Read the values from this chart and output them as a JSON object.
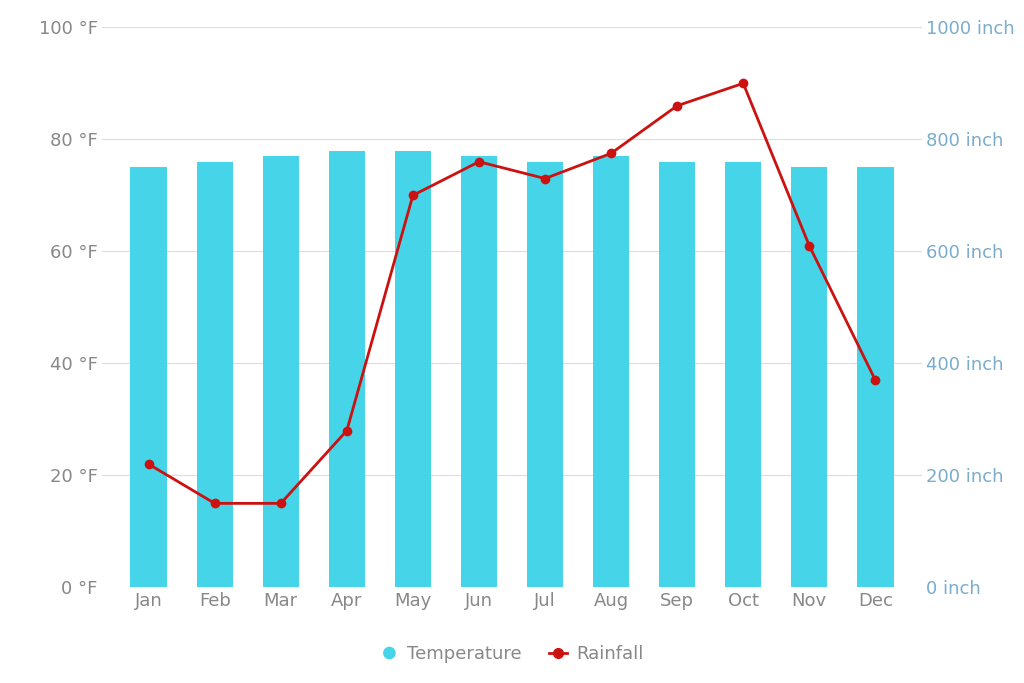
{
  "months": [
    "Jan",
    "Feb",
    "Mar",
    "Apr",
    "May",
    "Jun",
    "Jul",
    "Aug",
    "Sep",
    "Oct",
    "Nov",
    "Dec"
  ],
  "temperature": [
    75,
    76,
    77,
    78,
    78,
    77,
    76,
    77,
    76,
    76,
    75,
    75
  ],
  "rainfall": [
    220,
    150,
    150,
    280,
    700,
    760,
    730,
    775,
    860,
    900,
    610,
    370
  ],
  "bar_color": "#45d4e8",
  "line_color": "#cc1111",
  "marker_color": "#cc1111",
  "bg_color": "#ffffff",
  "left_axis_color": "#888888",
  "right_axis_color": "#7aadcc",
  "grid_color": "#dddddd",
  "left_yticks": [
    0,
    20,
    40,
    60,
    80,
    100
  ],
  "left_ylabels": [
    "0 °F",
    "20 °F",
    "40 °F",
    "60 °F",
    "80 °F",
    "100 °F"
  ],
  "right_yticks": [
    0,
    200,
    400,
    600,
    800,
    1000
  ],
  "right_ylabels": [
    "0 inch",
    "200 inch",
    "400 inch",
    "600 inch",
    "800 inch",
    "1000 inch"
  ],
  "ylim_left": [
    0,
    100
  ],
  "ylim_right": [
    0,
    1000
  ],
  "legend_temp": "Temperature",
  "legend_rain": "Rainfall",
  "bar_width": 0.55,
  "figsize": [
    10.24,
    6.83
  ],
  "dpi": 100
}
